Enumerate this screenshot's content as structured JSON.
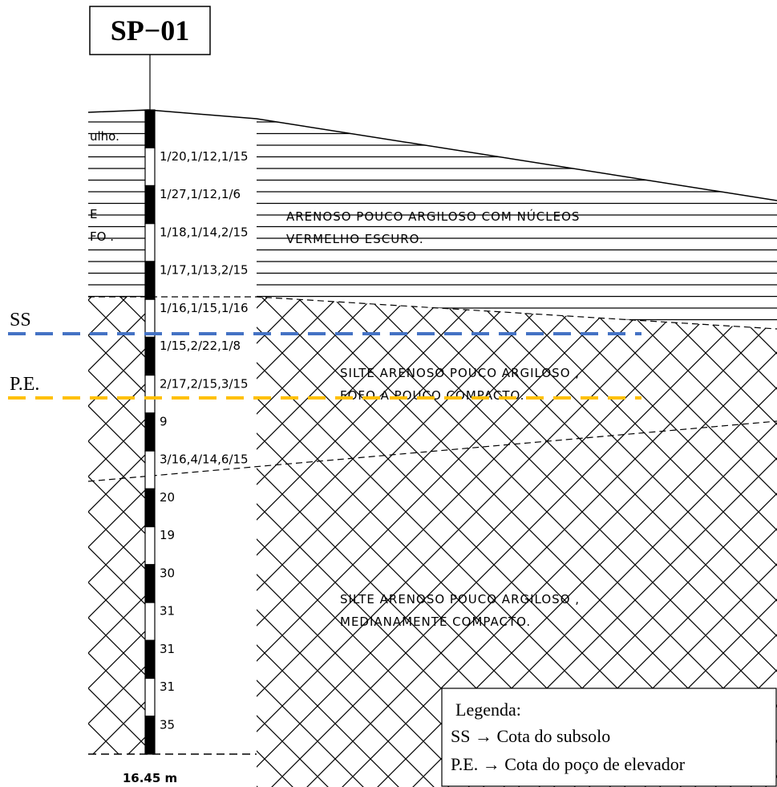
{
  "title": "SP−01",
  "depth": "16.45 m",
  "blow_counts": [
    "1/20,1/12,1/15",
    "1/27,1/12,1/6",
    "1/18,1/14,2/15",
    "1/17,1/13,2/15",
    "1/16,1/15,1/16",
    "1/15,2/22,1/8",
    "2/17,2/15,3/15",
    "9",
    "3/16,4/14,6/15",
    "20",
    "19",
    "30",
    "31",
    "31",
    "31",
    "35"
  ],
  "left_fragments": [
    "ulho.",
    "E",
    "FO ."
  ],
  "layers": [
    {
      "lines": [
        "ARENOSO POUCO ARGILOSO COM NÚCLEOS",
        "VERMELHO ESCURO."
      ]
    },
    {
      "lines": [
        "SILTE ARENOSO POUCO ARGILOSO ,",
        "FOFO A POUCO COMPACTO."
      ]
    },
    {
      "lines": [
        "SILTE ARENOSO POUCO ARGILOSO ,",
        "MEDIANAMENTE COMPACTO."
      ]
    }
  ],
  "markers": [
    {
      "label": "SS",
      "color": "#4472c4"
    },
    {
      "label": "P.E.",
      "color": "#ffc000"
    }
  ],
  "legend": {
    "title": "Legenda:",
    "items": [
      "SS → Cota do subsolo",
      "P.E. → Cota do poço de elevador"
    ]
  }
}
